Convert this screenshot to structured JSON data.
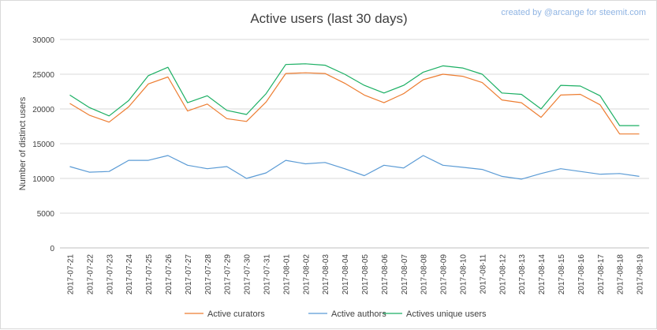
{
  "chart_data": {
    "type": "line",
    "title": "Active users (last 30 days)",
    "credit": "created by @arcange for steemit.com",
    "xlabel": "",
    "ylabel": "Number of distinct users",
    "ylim": [
      0,
      30000
    ],
    "yticks": [
      0,
      5000,
      10000,
      15000,
      20000,
      25000,
      30000
    ],
    "grid": true,
    "legend_position": "bottom",
    "categories": [
      "2017-07-21",
      "2017-07-22",
      "2017-07-23",
      "2017-07-24",
      "2017-07-25",
      "2017-07-26",
      "2017-07-27",
      "2017-07-28",
      "2017-07-29",
      "2017-07-30",
      "2017-07-31",
      "2017-08-01",
      "2017-08-02",
      "2017-08-03",
      "2017-08-04",
      "2017-08-05",
      "2017-08-06",
      "2017-08-07",
      "2017-08-08",
      "2017-08-09",
      "2017-08-10",
      "2017-08-11",
      "2017-08-12",
      "2017-08-13",
      "2017-08-14",
      "2017-08-15",
      "2017-08-16",
      "2017-08-17",
      "2017-08-18",
      "2017-08-19"
    ],
    "series": [
      {
        "name": "Active curators",
        "color": "#ed7d31",
        "values": [
          20800,
          19100,
          18100,
          20300,
          23600,
          24600,
          19700,
          20700,
          18600,
          18200,
          21000,
          25100,
          25200,
          25100,
          23700,
          22000,
          20900,
          22200,
          24200,
          25000,
          24700,
          23800,
          21300,
          20900,
          18800,
          22000,
          22100,
          20600,
          16400,
          16400
        ]
      },
      {
        "name": "Active authors",
        "color": "#5b9bd5",
        "values": [
          11700,
          10900,
          11000,
          12600,
          12600,
          13300,
          11900,
          11400,
          11700,
          10000,
          10800,
          12600,
          12100,
          12300,
          11400,
          10400,
          11900,
          11500,
          13300,
          11900,
          11600,
          11300,
          10300,
          9900,
          10700,
          11400,
          11000,
          10600,
          10700,
          10300
        ]
      },
      {
        "name": "Actives unique users",
        "color": "#1baf63",
        "values": [
          22000,
          20200,
          19000,
          21200,
          24800,
          26000,
          20900,
          21900,
          19800,
          19200,
          22200,
          26400,
          26500,
          26300,
          25000,
          23400,
          22300,
          23400,
          25300,
          26200,
          25900,
          25000,
          22300,
          22100,
          20000,
          23400,
          23300,
          21900,
          17600,
          17600
        ]
      }
    ]
  }
}
